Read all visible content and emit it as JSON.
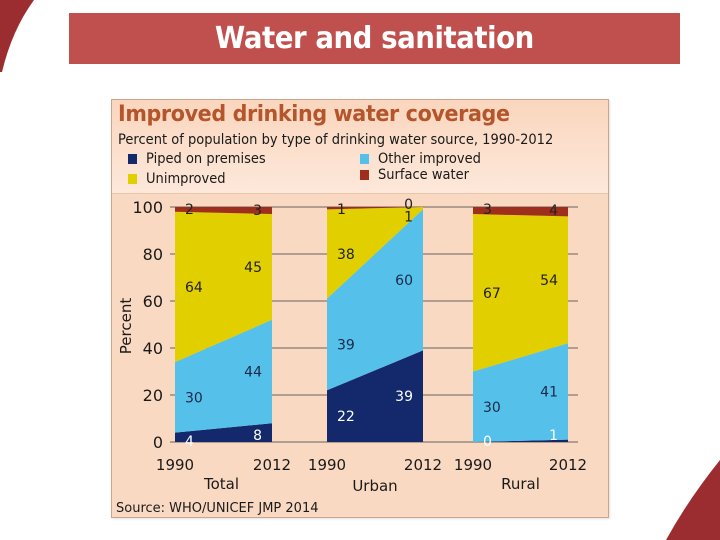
{
  "slide": {
    "title": "Water and sanitation",
    "accent_color": "#c0504d",
    "decor_color": "#9b2d30"
  },
  "chart_data": {
    "type": "area",
    "title": "Improved drinking water coverage",
    "subtitle": "Percent of population by type of drinking water source, 1990-2012",
    "ylabel": "Percent",
    "xlabel": "",
    "ylim": [
      0,
      100
    ],
    "yticks": [
      0,
      20,
      40,
      60,
      80,
      100
    ],
    "grid": true,
    "legend_position": "top",
    "source": "Source:  WHO/UNICEF JMP 2014",
    "series": [
      {
        "name": "Piped on premises",
        "color": "#13296b",
        "label_color": "#ffffff"
      },
      {
        "name": "Other improved",
        "color": "#55c0ea",
        "label_color": "#1a2a4a"
      },
      {
        "name": "Unimproved",
        "color": "#e1cf00",
        "label_color": "#222222"
      },
      {
        "name": "Surface water",
        "color": "#9e2f1c",
        "label_color": "#222222"
      }
    ],
    "legend": [
      {
        "label": "Piped on premises",
        "color": "#13296b"
      },
      {
        "label": "Other improved",
        "color": "#55c0ea"
      },
      {
        "label": "Unimproved",
        "color": "#e1cf00"
      },
      {
        "label": "Surface water",
        "color": "#9e2f1c"
      }
    ],
    "groups": [
      {
        "name": "Total",
        "years": [
          "1990",
          "2012"
        ],
        "values": {
          "Piped on premises": [
            4,
            8
          ],
          "Other improved": [
            30,
            44
          ],
          "Unimproved": [
            64,
            45
          ],
          "Surface water": [
            2,
            3
          ]
        }
      },
      {
        "name": "Urban",
        "years": [
          "1990",
          "2012"
        ],
        "values": {
          "Piped on premises": [
            22,
            39
          ],
          "Other improved": [
            39,
            60
          ],
          "Unimproved": [
            38,
            1
          ],
          "Surface water": [
            1,
            0
          ]
        }
      },
      {
        "name": "Rural",
        "years": [
          "1990",
          "2012"
        ],
        "values": {
          "Piped on premises": [
            0,
            1
          ],
          "Other improved": [
            30,
            41
          ],
          "Unimproved": [
            67,
            54
          ],
          "Surface water": [
            3,
            4
          ]
        }
      }
    ]
  }
}
